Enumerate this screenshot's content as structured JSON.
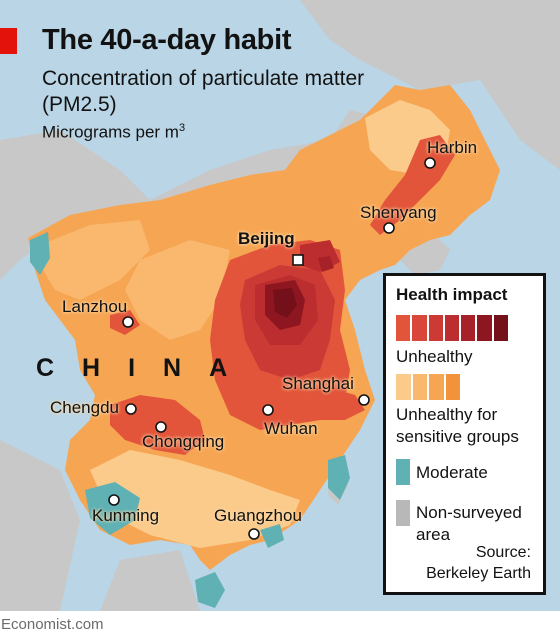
{
  "header": {
    "title": "The 40-a-day habit",
    "subtitle": "Concentration of particulate matter (PM2.5)",
    "units_main": "Micrograms per m",
    "units_sup": "3"
  },
  "map": {
    "country_label": "CHINA",
    "cities": [
      {
        "id": "harbin",
        "name": "Harbin",
        "capital": false
      },
      {
        "id": "shenyang",
        "name": "Shenyang",
        "capital": false
      },
      {
        "id": "beijing",
        "name": "Beijing",
        "capital": true
      },
      {
        "id": "lanzhou",
        "name": "Lanzhou",
        "capital": false
      },
      {
        "id": "shanghai",
        "name": "Shanghai",
        "capital": false
      },
      {
        "id": "chengdu",
        "name": "Chengdu",
        "capital": false
      },
      {
        "id": "chongqing",
        "name": "Chongqing",
        "capital": false
      },
      {
        "id": "wuhan",
        "name": "Wuhan",
        "capital": false
      },
      {
        "id": "kunming",
        "name": "Kunming",
        "capital": false
      },
      {
        "id": "guangzhou",
        "name": "Guangzhou",
        "capital": false
      }
    ]
  },
  "legend": {
    "title": "Health impact",
    "categories": [
      {
        "label": "Unhealthy",
        "colors": [
          "#e2553b",
          "#d9473a",
          "#cc3a36",
          "#bb2d2e",
          "#a62128",
          "#8d1620",
          "#74101a"
        ]
      },
      {
        "label": "Unhealthy for sensitive groups",
        "colors": [
          "#fbcb8c",
          "#f9b86e",
          "#f6a553",
          "#f2923a"
        ]
      },
      {
        "label": "Moderate",
        "colors": [
          "#5fb1b4"
        ]
      },
      {
        "label": "Non-surveyed area",
        "colors": [
          "#b8b8b8"
        ]
      }
    ],
    "source_label": "Source:",
    "source_name": "Berkeley Earth"
  },
  "footer": {
    "credit": "Economist.com"
  },
  "colors": {
    "sea": "#b9d5e6",
    "land_grey": "#cbcbcb",
    "accent": "#e3120b"
  }
}
